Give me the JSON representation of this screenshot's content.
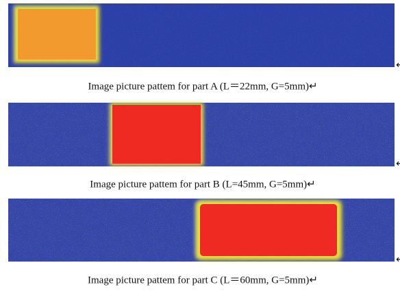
{
  "figure": {
    "captions": [
      "Image picture pattem for part A (L＝22mm, G=5mm)↵",
      "Image picture pattem for part B (L=45mm, G=5mm)↵",
      "Image picture pattem for part C (L＝60mm, G=5mm)↵"
    ]
  }
}
